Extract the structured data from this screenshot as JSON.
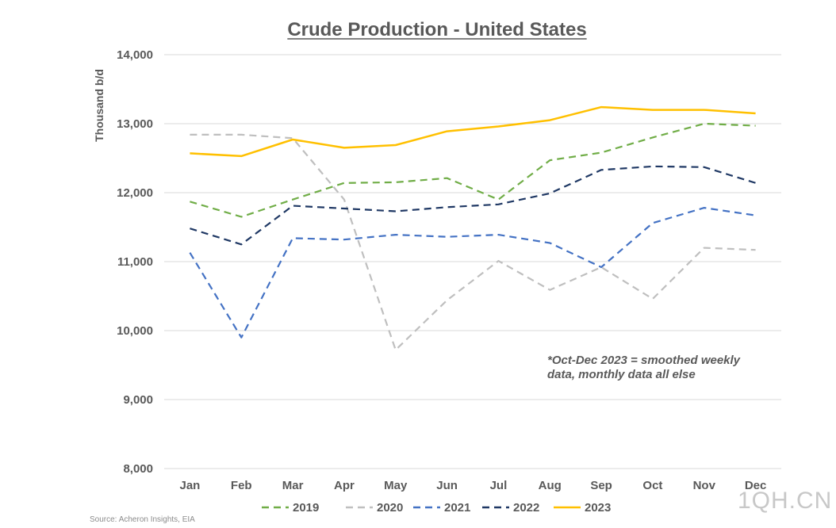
{
  "chart_data": {
    "type": "line",
    "title": "Crude Production - United States",
    "ylabel": "Thousand b/d",
    "xlabel": "",
    "categories": [
      "Jan",
      "Feb",
      "Mar",
      "Apr",
      "May",
      "Jun",
      "Jul",
      "Aug",
      "Sep",
      "Oct",
      "Nov",
      "Dec"
    ],
    "ylim": [
      8000,
      14000
    ],
    "yticks": [
      8000,
      9000,
      10000,
      11000,
      12000,
      13000,
      14000
    ],
    "ytick_labels": [
      "8,000",
      "9,000",
      "10,000",
      "11,000",
      "12,000",
      "13,000",
      "14,000"
    ],
    "grid": true,
    "legend_position": "bottom",
    "series": [
      {
        "name": "2019",
        "color": "#70ad47",
        "dash": "dashed",
        "values": [
          11870,
          11650,
          11900,
          12140,
          12150,
          12210,
          11900,
          12470,
          12580,
          12800,
          13000,
          12970
        ]
      },
      {
        "name": "2020",
        "color": "#bfbfbf",
        "dash": "dashed",
        "values": [
          12840,
          12840,
          12790,
          11900,
          9720,
          10440,
          11010,
          10590,
          10920,
          10460,
          11200,
          11170
        ]
      },
      {
        "name": "2021",
        "color": "#4472c4",
        "dash": "dashed",
        "values": [
          11130,
          9900,
          11340,
          11320,
          11390,
          11360,
          11390,
          11270,
          10920,
          11560,
          11780,
          11670
        ]
      },
      {
        "name": "2022",
        "color": "#1f3864",
        "dash": "dashed",
        "values": [
          11480,
          11250,
          11810,
          11770,
          11730,
          11790,
          11830,
          11990,
          12330,
          12380,
          12370,
          12140
        ]
      },
      {
        "name": "2023",
        "color": "#ffc000",
        "dash": "solid",
        "values": [
          12570,
          12530,
          12770,
          12650,
          12690,
          12890,
          12960,
          13050,
          13240,
          13200,
          13200,
          13150
        ]
      }
    ],
    "annotation": "*Oct-Dec 2023 = smoothed weekly data, monthly data all else",
    "annotation_lines": [
      "*Oct-Dec 2023 = smoothed weekly",
      "data, monthly data all else"
    ]
  },
  "source": "Source: Acheron Insights, EIA",
  "watermark": "1QH.CN"
}
